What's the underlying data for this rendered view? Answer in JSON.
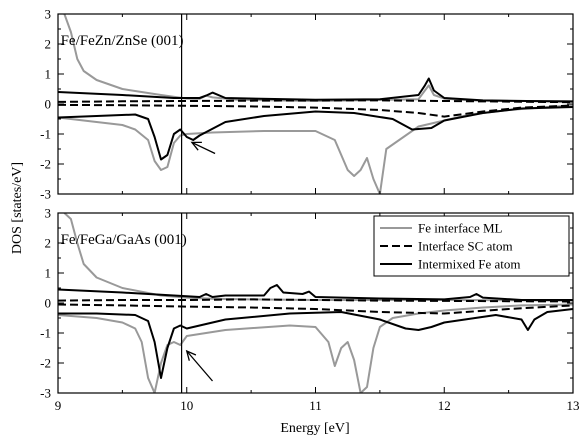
{
  "chart_data": [
    {
      "type": "line",
      "title": "Fe/FeZn/ZnSe (001)",
      "xlim": [
        9,
        13
      ],
      "ylim": [
        -3,
        3
      ],
      "xticks": [
        "9",
        "10",
        "11",
        "12",
        "13"
      ],
      "yticks": [
        "-3",
        "-2",
        "-1",
        "0",
        "1",
        "2",
        "3"
      ],
      "fermi_level_x": 9.96,
      "annotation": {
        "type": "arrow",
        "from": [
          10.22,
          -1.65
        ],
        "to": [
          10.04,
          -1.28
        ]
      },
      "grid": false,
      "series": [
        {
          "name": "Fe interface ML",
          "color": "#999999",
          "dash": "solid",
          "spin_up": {
            "x": [
              9.05,
              9.1,
              9.15,
              9.2,
              9.3,
              9.5,
              9.8,
              10.0,
              10.1,
              10.15,
              10.2,
              10.4,
              11.0,
              11.8,
              11.85,
              11.88,
              11.92,
              12.0,
              12.2,
              12.5,
              13.0
            ],
            "y": [
              3.0,
              2.4,
              1.5,
              1.1,
              0.8,
              0.5,
              0.3,
              0.18,
              0.17,
              0.28,
              0.22,
              0.14,
              0.1,
              0.16,
              0.45,
              0.62,
              0.3,
              0.18,
              0.12,
              0.1,
              0.1
            ]
          },
          "spin_down": {
            "x": [
              9.0,
              9.2,
              9.5,
              9.6,
              9.7,
              9.75,
              9.8,
              9.85,
              9.9,
              9.95,
              10.0,
              10.2,
              10.6,
              11.0,
              11.15,
              11.25,
              11.3,
              11.35,
              11.4,
              11.45,
              11.5,
              11.55,
              11.8,
              12.0,
              12.2,
              12.5,
              12.8,
              13.0
            ],
            "y": [
              -0.45,
              -0.55,
              -0.7,
              -0.85,
              -1.2,
              -1.9,
              -2.2,
              -2.1,
              -1.3,
              -1.05,
              -1.0,
              -0.95,
              -0.9,
              -0.9,
              -1.2,
              -2.2,
              -2.4,
              -2.2,
              -1.8,
              -2.5,
              -3.0,
              -1.5,
              -0.75,
              -0.55,
              -0.35,
              -0.2,
              -0.1,
              -0.05
            ]
          }
        },
        {
          "name": "Interface SC atom",
          "color": "#000000",
          "dash": "dashed",
          "spin_up": {
            "x": [
              9.0,
              9.5,
              10.0,
              10.5,
              11.0,
              11.5,
              12.0,
              12.5,
              13.0
            ],
            "y": [
              0.07,
              0.09,
              0.1,
              0.11,
              0.12,
              0.12,
              0.1,
              0.08,
              0.06
            ]
          },
          "spin_down": {
            "x": [
              9.0,
              9.5,
              10.0,
              10.5,
              11.0,
              11.5,
              11.8,
              12.0,
              12.3,
              12.6,
              13.0
            ],
            "y": [
              -0.03,
              -0.04,
              -0.06,
              -0.08,
              -0.12,
              -0.2,
              -0.3,
              -0.42,
              -0.25,
              -0.12,
              -0.05
            ]
          }
        },
        {
          "name": "Intermixed Fe atom",
          "color": "#000000",
          "dash": "solid",
          "spin_up": {
            "x": [
              9.0,
              9.5,
              9.9,
              10.1,
              10.15,
              10.2,
              10.3,
              11.0,
              11.5,
              11.8,
              11.85,
              11.88,
              11.92,
              12.0,
              12.3,
              13.0
            ],
            "y": [
              0.4,
              0.3,
              0.2,
              0.2,
              0.28,
              0.38,
              0.2,
              0.14,
              0.16,
              0.3,
              0.62,
              0.85,
              0.45,
              0.2,
              0.12,
              0.08
            ]
          },
          "spin_down": {
            "x": [
              9.0,
              9.3,
              9.6,
              9.7,
              9.75,
              9.8,
              9.85,
              9.9,
              9.95,
              10.0,
              10.05,
              10.1,
              10.3,
              10.6,
              11.0,
              11.3,
              11.6,
              11.75,
              11.9,
              12.0,
              12.3,
              12.6,
              13.0
            ],
            "y": [
              -0.45,
              -0.4,
              -0.35,
              -0.5,
              -1.1,
              -1.85,
              -1.7,
              -1.0,
              -0.85,
              -1.1,
              -1.2,
              -1.05,
              -0.6,
              -0.4,
              -0.25,
              -0.3,
              -0.5,
              -0.85,
              -0.8,
              -0.55,
              -0.3,
              -0.15,
              -0.1
            ]
          }
        }
      ]
    },
    {
      "type": "line",
      "title": "Fe/FeGa/GaAs (001)",
      "xlabel": "Energy [eV]",
      "ylabel": "DOS [states/eV]",
      "xlim": [
        9,
        13
      ],
      "ylim": [
        -3,
        3
      ],
      "xticks": [
        "9",
        "10",
        "11",
        "12",
        "13"
      ],
      "yticks": [
        "-3",
        "-2",
        "-1",
        "0",
        "1",
        "2",
        "3"
      ],
      "fermi_level_x": 9.96,
      "annotation": {
        "type": "arrow",
        "from": [
          10.2,
          -2.6
        ],
        "to": [
          10.0,
          -1.6
        ]
      },
      "grid": false,
      "legend": {
        "position": "top-right",
        "entries": [
          "Fe interface ML",
          "Interface SC atom",
          "Intermixed Fe atom"
        ]
      },
      "series": [
        {
          "name": "Fe interface ML",
          "color": "#999999",
          "dash": "solid",
          "spin_up": {
            "x": [
              9.05,
              9.1,
              9.15,
              9.2,
              9.3,
              9.5,
              9.8,
              10.0,
              10.2,
              10.5,
              11.0,
              12.0,
              13.0
            ],
            "y": [
              3.0,
              2.8,
              2.0,
              1.3,
              0.85,
              0.5,
              0.25,
              0.18,
              0.14,
              0.12,
              0.1,
              0.1,
              0.08
            ]
          },
          "spin_down": {
            "x": [
              9.0,
              9.3,
              9.5,
              9.6,
              9.65,
              9.7,
              9.75,
              9.8,
              9.85,
              9.9,
              9.95,
              10.0,
              10.3,
              10.8,
              11.0,
              11.1,
              11.15,
              11.2,
              11.25,
              11.3,
              11.35,
              11.4,
              11.45,
              11.5,
              11.6,
              11.8,
              12.0,
              12.3,
              12.6,
              13.0
            ],
            "y": [
              -0.4,
              -0.5,
              -0.65,
              -0.85,
              -1.3,
              -2.5,
              -3.0,
              -2.0,
              -1.4,
              -1.3,
              -1.4,
              -1.1,
              -0.9,
              -0.75,
              -0.8,
              -1.3,
              -2.1,
              -1.5,
              -1.3,
              -1.9,
              -3.0,
              -2.8,
              -1.5,
              -0.8,
              -0.5,
              -0.35,
              -0.25,
              -0.15,
              -0.08,
              -0.05
            ]
          }
        },
        {
          "name": "Interface SC atom",
          "color": "#000000",
          "dash": "dashed",
          "spin_up": {
            "x": [
              9.0,
              9.5,
              10.0,
              10.5,
              11.0,
              11.5,
              12.0,
              12.5,
              13.0
            ],
            "y": [
              0.08,
              0.1,
              0.1,
              0.12,
              0.1,
              0.08,
              0.07,
              0.06,
              0.05
            ]
          },
          "spin_down": {
            "x": [
              9.0,
              9.5,
              10.0,
              10.5,
              11.0,
              11.5,
              12.0,
              12.5,
              13.0
            ],
            "y": [
              -0.05,
              -0.08,
              -0.12,
              -0.15,
              -0.2,
              -0.3,
              -0.35,
              -0.2,
              -0.08
            ]
          }
        },
        {
          "name": "Intermixed Fe atom",
          "color": "#000000",
          "dash": "solid",
          "spin_up": {
            "x": [
              9.0,
              9.5,
              9.9,
              10.1,
              10.15,
              10.2,
              10.3,
              10.6,
              10.65,
              10.7,
              10.75,
              10.9,
              10.95,
              11.0,
              11.5,
              12.0,
              12.2,
              12.25,
              12.3,
              12.6,
              13.0
            ],
            "y": [
              0.45,
              0.35,
              0.25,
              0.2,
              0.3,
              0.2,
              0.25,
              0.25,
              0.5,
              0.6,
              0.35,
              0.3,
              0.38,
              0.2,
              0.15,
              0.12,
              0.2,
              0.3,
              0.18,
              0.1,
              0.1
            ]
          },
          "spin_down": {
            "x": [
              9.0,
              9.3,
              9.6,
              9.7,
              9.75,
              9.8,
              9.85,
              9.9,
              9.95,
              10.0,
              10.3,
              10.8,
              11.2,
              11.5,
              11.7,
              11.8,
              11.9,
              12.0,
              12.4,
              12.6,
              12.65,
              12.7,
              12.8,
              13.0
            ],
            "y": [
              -0.35,
              -0.35,
              -0.4,
              -0.6,
              -1.3,
              -2.5,
              -1.5,
              -0.85,
              -0.75,
              -0.85,
              -0.55,
              -0.35,
              -0.3,
              -0.55,
              -0.85,
              -0.9,
              -0.8,
              -0.65,
              -0.4,
              -0.55,
              -0.9,
              -0.55,
              -0.3,
              -0.2
            ]
          }
        }
      ]
    }
  ]
}
